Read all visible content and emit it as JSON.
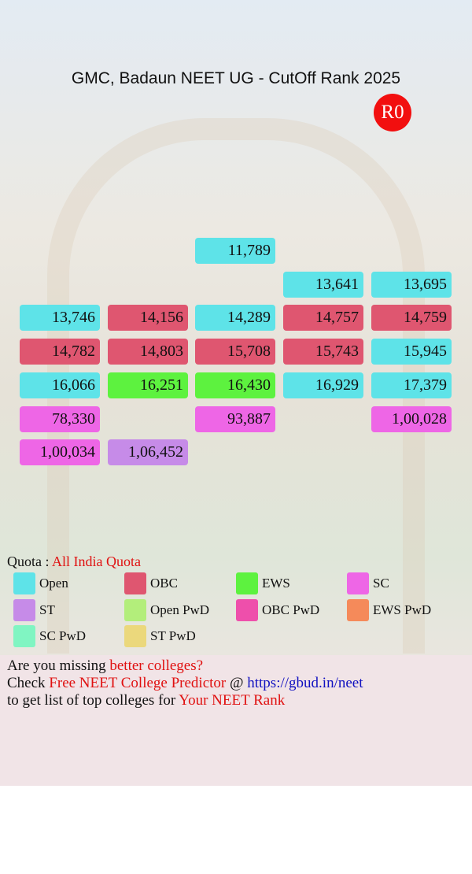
{
  "title": "GMC, Badaun NEET UG - CutOff Rank 2025",
  "badge": "R0",
  "grid": [
    [
      null,
      null,
      {
        "text": "11,789",
        "quota": "Open"
      },
      null,
      null
    ],
    [
      null,
      null,
      null,
      {
        "text": "13,641",
        "quota": "Open"
      },
      {
        "text": "13,695",
        "quota": "Open"
      }
    ],
    [
      {
        "text": "13,746",
        "quota": "Open"
      },
      {
        "text": "14,156",
        "quota": "OBC"
      },
      {
        "text": "14,289",
        "quota": "Open"
      },
      {
        "text": "14,757",
        "quota": "OBC"
      },
      {
        "text": "14,759",
        "quota": "OBC"
      }
    ],
    [
      {
        "text": "14,782",
        "quota": "OBC"
      },
      {
        "text": "14,803",
        "quota": "OBC"
      },
      {
        "text": "15,708",
        "quota": "OBC"
      },
      {
        "text": "15,743",
        "quota": "OBC"
      },
      {
        "text": "15,945",
        "quota": "Open"
      }
    ],
    [
      {
        "text": "16,066",
        "quota": "Open"
      },
      {
        "text": "16,251",
        "quota": "EWS"
      },
      {
        "text": "16,430",
        "quota": "EWS"
      },
      {
        "text": "16,929",
        "quota": "Open"
      },
      {
        "text": "17,379",
        "quota": "Open"
      }
    ],
    [
      {
        "text": "78,330",
        "quota": "SC"
      },
      null,
      {
        "text": "93,887",
        "quota": "SC"
      },
      null,
      {
        "text": "1,00,028",
        "quota": "SC"
      }
    ],
    [
      {
        "text": "1,00,034",
        "quota": "SC"
      },
      {
        "text": "1,06,452",
        "quota": "ST"
      },
      null,
      null,
      null
    ]
  ],
  "quota": {
    "label": "Quota : ",
    "value": "All India Quota"
  },
  "legend": [
    {
      "name": "Open",
      "color": "#5ee3e8"
    },
    {
      "name": "OBC",
      "color": "#df5670"
    },
    {
      "name": "EWS",
      "color": "#5df23f"
    },
    {
      "name": "SC",
      "color": "#ee66e6"
    },
    {
      "name": "ST",
      "color": "#c68be8"
    },
    {
      "name": "Open PwD",
      "color": "#b3ee7b"
    },
    {
      "name": "OBC PwD",
      "color": "#ee4fab"
    },
    {
      "name": "EWS PwD",
      "color": "#f58a5a"
    },
    {
      "name": "SC PwD",
      "color": "#80f5c2"
    },
    {
      "name": "ST PwD",
      "color": "#ebd87c"
    }
  ],
  "footer": [
    [
      {
        "text": "Are you missing "
      },
      {
        "text": "better colleges?",
        "style": "red"
      }
    ],
    [
      {
        "text": "Check "
      },
      {
        "text": "Free NEET College Predictor",
        "style": "red"
      },
      {
        "text": " @ "
      },
      {
        "text": "https://gbud.in/neet",
        "style": "blue"
      }
    ],
    [
      {
        "text": "to get list of top colleges for "
      },
      {
        "text": "Your NEET Rank",
        "style": "red"
      }
    ]
  ]
}
